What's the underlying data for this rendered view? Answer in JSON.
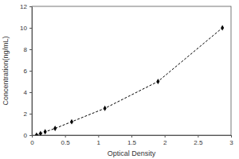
{
  "chart_data": {
    "type": "line",
    "x_label": "Optical Density",
    "y_label": "Concentration(ng/mL)",
    "x": [
      0.07,
      0.13,
      0.2,
      0.35,
      0.6,
      1.1,
      1.9,
      2.87
    ],
    "values": [
      0,
      0.156,
      0.3125,
      0.625,
      1.25,
      2.5,
      5,
      10
    ],
    "color": "#000000",
    "marker": "diamond",
    "line_style": "dashed",
    "xlim": [
      0,
      3
    ],
    "xticks": [
      0,
      0.5,
      1,
      1.5,
      2,
      2.5,
      3
    ],
    "ylim": [
      0,
      12
    ],
    "yticks": [
      0,
      2,
      4,
      6,
      8,
      10,
      12
    ]
  }
}
